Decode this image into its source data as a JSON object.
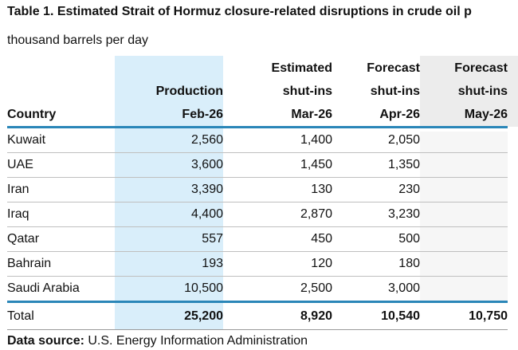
{
  "title": "Table 1. Estimated Strait of Hormuz closure-related disruptions in crude oil p",
  "subtitle": "thousand barrels per day",
  "columns": {
    "country": [
      "Country"
    ],
    "production": [
      "Production",
      "Feb-26"
    ],
    "estimated": [
      "Estimated",
      "shut-ins",
      "Mar-26"
    ],
    "forecast_apr": [
      "Forecast",
      "shut-ins",
      "Apr-26"
    ],
    "forecast_may": [
      "Forecast",
      "shut-ins",
      "May-26"
    ]
  },
  "rows": [
    {
      "country": "Kuwait",
      "production": "2,560",
      "estimated": "1,400",
      "forecast_apr": "2,050",
      "forecast_may": ""
    },
    {
      "country": "UAE",
      "production": "3,600",
      "estimated": "1,450",
      "forecast_apr": "1,350",
      "forecast_may": ""
    },
    {
      "country": "Iran",
      "production": "3,390",
      "estimated": "130",
      "forecast_apr": "230",
      "forecast_may": ""
    },
    {
      "country": "Iraq",
      "production": "4,400",
      "estimated": "2,870",
      "forecast_apr": "3,230",
      "forecast_may": ""
    },
    {
      "country": "Qatar",
      "production": "557",
      "estimated": "450",
      "forecast_apr": "500",
      "forecast_may": ""
    },
    {
      "country": "Bahrain",
      "production": "193",
      "estimated": "120",
      "forecast_apr": "180",
      "forecast_may": ""
    },
    {
      "country": "Saudi Arabia",
      "production": "10,500",
      "estimated": "2,500",
      "forecast_apr": "3,000",
      "forecast_may": ""
    }
  ],
  "total": {
    "country": "Total",
    "production": "25,200",
    "estimated": "8,920",
    "forecast_apr": "10,540",
    "forecast_may": "10,750"
  },
  "source": {
    "label": "Data source:",
    "text": " U.S. Energy Information Administration"
  },
  "colors": {
    "accent_rule": "#2a86b8",
    "production_shade": "#d9eefa",
    "may_shade": "#ececec"
  }
}
